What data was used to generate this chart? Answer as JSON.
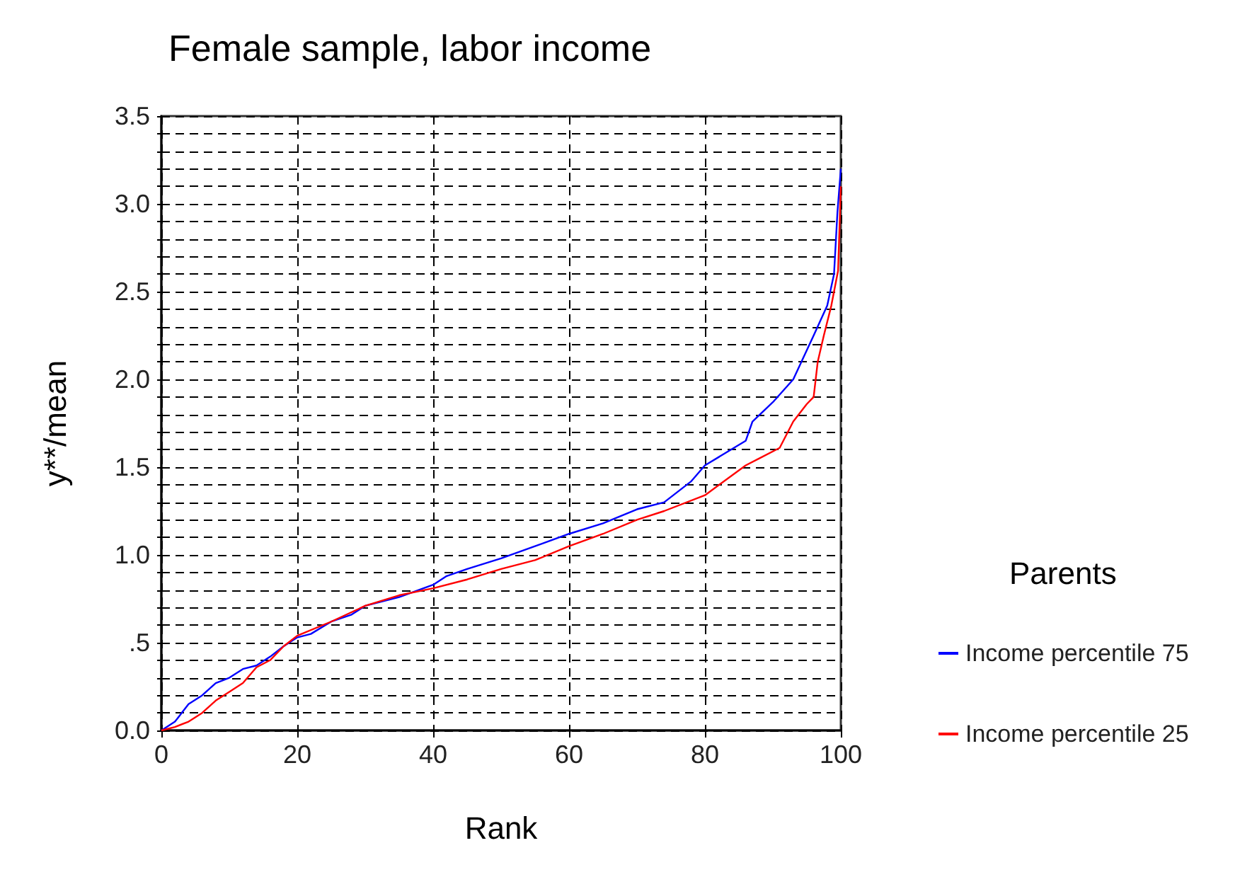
{
  "chart_data": {
    "type": "line",
    "title": "Female sample, labor income",
    "xlabel": "Rank",
    "ylabel": "y**/mean",
    "legend_title": "Parents",
    "xlim": [
      0,
      100
    ],
    "xticks": [
      0,
      20,
      40,
      60,
      80,
      100
    ],
    "ylim": [
      0,
      3.5
    ],
    "yticks": [
      {
        "value": 0,
        "label": "0.0"
      },
      {
        "value": 0.1,
        "label": null
      },
      {
        "value": 0.2,
        "label": null
      },
      {
        "value": 0.3,
        "label": null
      },
      {
        "value": 0.4,
        "label": null
      },
      {
        "value": 0.5,
        "label": ".5"
      },
      {
        "value": 0.6,
        "label": null
      },
      {
        "value": 0.7,
        "label": null
      },
      {
        "value": 0.8,
        "label": null
      },
      {
        "value": 0.9,
        "label": null
      },
      {
        "value": 1.0,
        "label": "1.0"
      },
      {
        "value": 1.1,
        "label": null
      },
      {
        "value": 1.2,
        "label": null
      },
      {
        "value": 1.3,
        "label": null
      },
      {
        "value": 1.4,
        "label": null
      },
      {
        "value": 1.5,
        "label": "1.5"
      },
      {
        "value": 1.6,
        "label": null
      },
      {
        "value": 1.7,
        "label": null
      },
      {
        "value": 1.8,
        "label": null
      },
      {
        "value": 1.9,
        "label": null
      },
      {
        "value": 2.0,
        "label": "2.0"
      },
      {
        "value": 2.1,
        "label": null
      },
      {
        "value": 2.2,
        "label": null
      },
      {
        "value": 2.3,
        "label": null
      },
      {
        "value": 2.4,
        "label": null
      },
      {
        "value": 2.5,
        "label": "2.5"
      },
      {
        "value": 2.6,
        "label": null
      },
      {
        "value": 2.7,
        "label": null
      },
      {
        "value": 2.8,
        "label": null
      },
      {
        "value": 2.9,
        "label": null
      },
      {
        "value": 3.0,
        "label": "3.0"
      },
      {
        "value": 3.1,
        "label": null
      },
      {
        "value": 3.2,
        "label": null
      },
      {
        "value": 3.3,
        "label": null
      },
      {
        "value": 3.4,
        "label": null
      },
      {
        "value": 3.5,
        "label": "3.5"
      }
    ],
    "grid": true,
    "legend": "right",
    "line_style": "solid",
    "series": [
      {
        "name": "Income percentile 75",
        "color": "#0000ff",
        "x": [
          0,
          2,
          4,
          6,
          8,
          10,
          12,
          14,
          16,
          18,
          20,
          22,
          25,
          28,
          30,
          35,
          40,
          42,
          45,
          50,
          55,
          60,
          65,
          70,
          74,
          78,
          80,
          86,
          87,
          90,
          93,
          96,
          98,
          99,
          99.5,
          100
        ],
        "values": [
          0,
          0.05,
          0.15,
          0.2,
          0.27,
          0.3,
          0.35,
          0.37,
          0.42,
          0.48,
          0.53,
          0.55,
          0.62,
          0.66,
          0.71,
          0.76,
          0.83,
          0.88,
          0.92,
          0.98,
          1.05,
          1.12,
          1.18,
          1.26,
          1.3,
          1.42,
          1.51,
          1.65,
          1.76,
          1.87,
          2.0,
          2.25,
          2.42,
          2.6,
          2.95,
          3.2
        ]
      },
      {
        "name": "Income percentile 25",
        "color": "#ff0000",
        "x": [
          0,
          2,
          4,
          6,
          8,
          10,
          12,
          14,
          16,
          18,
          20,
          25,
          30,
          35,
          40,
          45,
          50,
          55,
          60,
          65,
          70,
          74,
          80,
          86,
          88,
          91,
          93,
          95,
          96,
          96.6,
          97.5,
          98.6,
          99.6,
          100
        ],
        "values": [
          0,
          0.02,
          0.05,
          0.1,
          0.17,
          0.22,
          0.27,
          0.36,
          0.4,
          0.48,
          0.54,
          0.62,
          0.71,
          0.77,
          0.81,
          0.86,
          0.92,
          0.97,
          1.05,
          1.12,
          1.2,
          1.25,
          1.34,
          1.51,
          1.55,
          1.61,
          1.76,
          1.86,
          1.9,
          2.1,
          2.25,
          2.42,
          2.62,
          3.1
        ]
      }
    ]
  }
}
